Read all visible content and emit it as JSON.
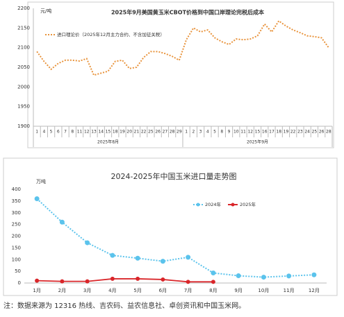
{
  "chart_data": [
    {
      "type": "line",
      "title": "2025年9月美国黄玉米CBOT价格到中国口岸理论完税后成本",
      "y_label": "元/吨",
      "category_groups": [
        {
          "name": "2025年8月",
          "categories": [
            "1",
            "4",
            "5",
            "6",
            "7",
            "8",
            "11",
            "12",
            "13",
            "14",
            "15",
            "18",
            "19",
            "20",
            "21",
            "22",
            "25",
            "26",
            "27",
            "28",
            "29"
          ]
        },
        {
          "name": "2025年9月",
          "categories": [
            "1",
            "2",
            "3",
            "4",
            "5",
            "8",
            "9",
            "10",
            "11",
            "12",
            "15",
            "16",
            "17",
            "18",
            "19",
            "22",
            "23",
            "24",
            "25",
            "26",
            "28"
          ]
        }
      ],
      "series": [
        {
          "name": "进口理论价（2025年12月主力合约、不含加征关税）",
          "color": "#e8923a",
          "line_style": "dotted",
          "markers": false,
          "values": [
            2090,
            2065,
            2045,
            2060,
            2068,
            2068,
            2066,
            2072,
            2030,
            2035,
            2040,
            2065,
            2068,
            2047,
            2050,
            2075,
            2090,
            2090,
            2085,
            2078,
            2068,
            2120,
            2150,
            2140,
            2145,
            2125,
            2115,
            2108,
            2122,
            2120,
            2122,
            2130,
            2160,
            2140,
            2168,
            2155,
            2145,
            2138,
            2130,
            2128,
            2125,
            2100
          ]
        }
      ],
      "ylim": [
        1900,
        2200
      ],
      "yticks": [
        1900,
        1950,
        2000,
        2050,
        2100,
        2150,
        2200
      ],
      "grid": false,
      "legend": "upper left"
    },
    {
      "type": "line",
      "title": "2024-2025年中国玉米进口量走势图",
      "y_label": "万吨",
      "categories": [
        "1月",
        "2月",
        "3月",
        "4月",
        "5月",
        "6月",
        "7月",
        "8月",
        "9月",
        "10月",
        "11月",
        "12月"
      ],
      "series": [
        {
          "name": "2024年",
          "color": "#5bc3ec",
          "line_style": "dotted",
          "markers": true,
          "values": [
            360,
            260,
            172,
            118,
            106,
            93,
            110,
            43,
            31,
            25,
            30,
            35
          ]
        },
        {
          "name": "2025年",
          "color": "#d9262a",
          "line_style": "solid",
          "markers": true,
          "values": [
            10,
            7,
            7,
            18,
            18,
            15,
            5,
            5,
            null,
            null,
            null,
            null
          ]
        }
      ],
      "ylim": [
        0,
        400
      ],
      "yticks": [
        0,
        50,
        100,
        150,
        200,
        250,
        300,
        350,
        400
      ],
      "grid": false,
      "legend": "upper center"
    }
  ],
  "note": "注：数据来源为 12316 热线、吉农码、益农信息社、卓创资讯和中国玉米网。"
}
